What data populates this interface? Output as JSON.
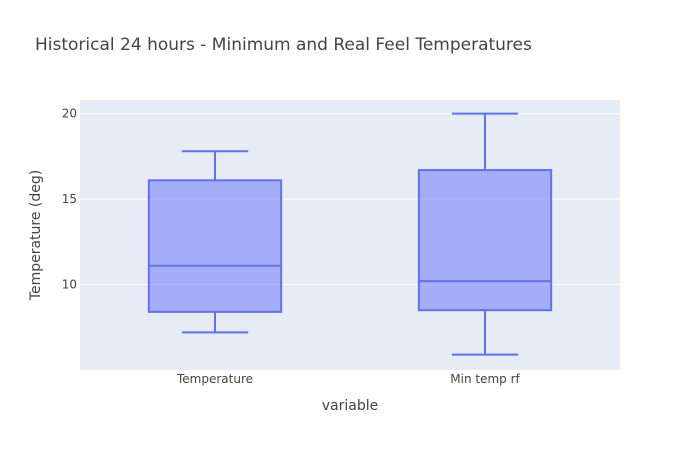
{
  "chart_data": {
    "type": "box",
    "title": "Historical 24 hours - Minimum and Real Feel Temperatures",
    "xlabel": "variable",
    "ylabel": "Temperature (deg)",
    "ylim": [
      5.0,
      20.8
    ],
    "yticks": [
      10,
      15,
      20
    ],
    "categories": [
      "Temperature",
      "Min temp rf"
    ],
    "boxes": [
      {
        "category": "Temperature",
        "min": 7.2,
        "q1": 8.4,
        "median": 11.1,
        "q3": 16.1,
        "max": 17.8
      },
      {
        "category": "Min temp rf",
        "min": 5.9,
        "q1": 8.5,
        "median": 10.2,
        "q3": 16.7,
        "max": 20.0
      }
    ],
    "grid": true,
    "colors": {
      "plot_bg": "#e5ecf6",
      "grid": "#ffffff",
      "box_line": "#636efa",
      "box_fill": "rgba(99,110,250,0.5)"
    }
  }
}
